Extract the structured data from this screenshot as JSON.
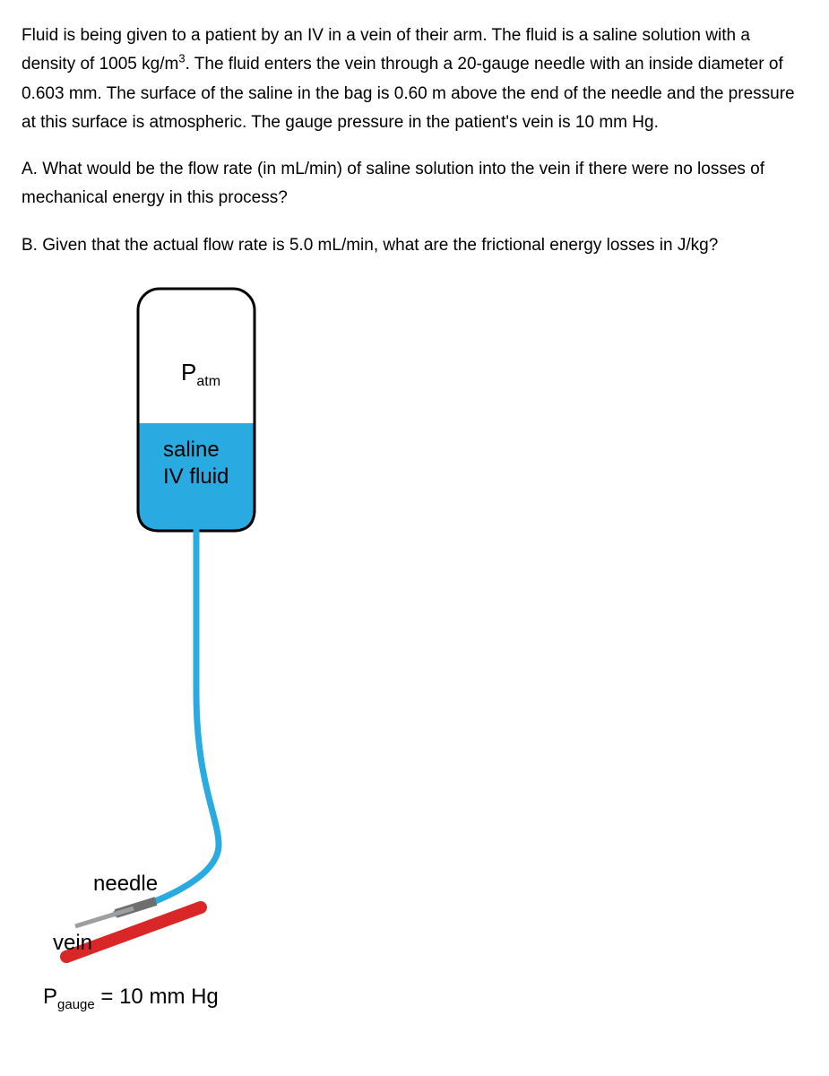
{
  "problem": {
    "intro_html": "Fluid is being given to a patient by an IV in a vein of their arm. The fluid is a saline solution with a density of 1005 kg/m<sup class=\"superscript\">3</sup>. The fluid enters the vein through a 20-gauge needle with an inside diameter of 0.603 mm. The surface of the saline in the bag is 0.60 m above the end of the needle and the pressure at this surface is atmospheric. The gauge pressure in the patient's vein is 10 mm Hg.",
    "part_a": "A. What would be the flow rate (in mL/min) of saline solution into the vein if there were no losses of mechanical energy in this process?",
    "part_b": "B. Given that the actual flow rate is 5.0 mL/min, what are the frictional energy losses in J/kg?"
  },
  "figure": {
    "label_P": "P",
    "label_atm": "atm",
    "label_saline_line1": "saline",
    "label_saline_line2": "IV fluid",
    "label_needle": "needle",
    "label_vein": "vein",
    "label_Pgauge_P": "P",
    "label_Pgauge_sub": "gauge",
    "label_Pgauge_value": " = 10 mm Hg",
    "colors": {
      "bag_outline": "#000000",
      "saline_fill": "#29abe2",
      "tube": "#29abe2",
      "needle": "#9e9e9e",
      "vein": "#d92626",
      "background": "#ffffff",
      "text": "#000000"
    },
    "stroke_widths": {
      "bag_outline": 3,
      "tube": 7,
      "needle_body": 6,
      "needle_tip": 10,
      "vein": 14
    }
  }
}
